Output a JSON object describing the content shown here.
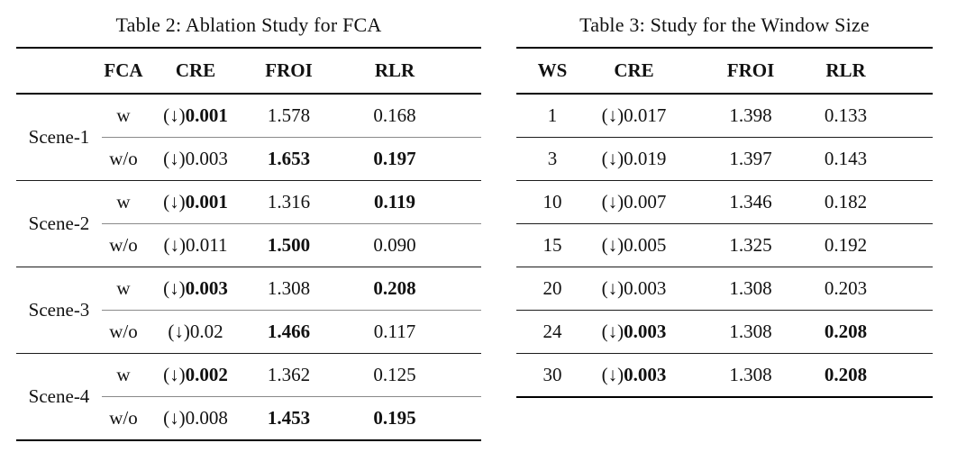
{
  "page": {
    "background": "#ffffff",
    "text_color": "#111111"
  },
  "table2": {
    "title": "Table 2: Ablation Study for FCA",
    "arrow": "(↓)",
    "headers": {
      "scene": "",
      "fca": "FCA",
      "cre": "CRE",
      "froi": "FROI",
      "rlr": "RLR"
    },
    "groups": [
      {
        "scene": "Scene-1",
        "rows": [
          {
            "fca": "w",
            "cre": "0.001",
            "cre_bold": true,
            "froi": "1.578",
            "froi_bold": false,
            "rlr": "0.168",
            "rlr_bold": false
          },
          {
            "fca": "w/o",
            "cre": "0.003",
            "cre_bold": false,
            "froi": "1.653",
            "froi_bold": true,
            "rlr": "0.197",
            "rlr_bold": true
          }
        ]
      },
      {
        "scene": "Scene-2",
        "rows": [
          {
            "fca": "w",
            "cre": "0.001",
            "cre_bold": true,
            "froi": "1.316",
            "froi_bold": false,
            "rlr": "0.119",
            "rlr_bold": true
          },
          {
            "fca": "w/o",
            "cre": "0.011",
            "cre_bold": false,
            "froi": "1.500",
            "froi_bold": true,
            "rlr": "0.090",
            "rlr_bold": false
          }
        ]
      },
      {
        "scene": "Scene-3",
        "rows": [
          {
            "fca": "w",
            "cre": "0.003",
            "cre_bold": true,
            "froi": "1.308",
            "froi_bold": false,
            "rlr": "0.208",
            "rlr_bold": true
          },
          {
            "fca": "w/o",
            "cre": "0.02",
            "cre_bold": false,
            "froi": "1.466",
            "froi_bold": true,
            "rlr": "0.117",
            "rlr_bold": false
          }
        ]
      },
      {
        "scene": "Scene-4",
        "rows": [
          {
            "fca": "w",
            "cre": "0.002",
            "cre_bold": true,
            "froi": "1.362",
            "froi_bold": false,
            "rlr": "0.125",
            "rlr_bold": false
          },
          {
            "fca": "w/o",
            "cre": "0.008",
            "cre_bold": false,
            "froi": "1.453",
            "froi_bold": true,
            "rlr": "0.195",
            "rlr_bold": true
          }
        ]
      }
    ]
  },
  "table3": {
    "title": "Table 3: Study for the Window Size",
    "arrow": "(↓)",
    "headers": {
      "ws": "WS",
      "cre": "CRE",
      "froi": "FROI",
      "rlr": "RLR"
    },
    "rows": [
      {
        "ws": "1",
        "cre": "0.017",
        "cre_bold": false,
        "froi": "1.398",
        "froi_bold": false,
        "rlr": "0.133",
        "rlr_bold": false
      },
      {
        "ws": "3",
        "cre": "0.019",
        "cre_bold": false,
        "froi": "1.397",
        "froi_bold": false,
        "rlr": "0.143",
        "rlr_bold": false
      },
      {
        "ws": "10",
        "cre": "0.007",
        "cre_bold": false,
        "froi": "1.346",
        "froi_bold": false,
        "rlr": "0.182",
        "rlr_bold": false
      },
      {
        "ws": "15",
        "cre": "0.005",
        "cre_bold": false,
        "froi": "1.325",
        "froi_bold": false,
        "rlr": "0.192",
        "rlr_bold": false
      },
      {
        "ws": "20",
        "cre": "0.003",
        "cre_bold": false,
        "froi": "1.308",
        "froi_bold": false,
        "rlr": "0.203",
        "rlr_bold": false
      },
      {
        "ws": "24",
        "cre": "0.003",
        "cre_bold": true,
        "froi": "1.308",
        "froi_bold": false,
        "rlr": "0.208",
        "rlr_bold": true
      },
      {
        "ws": "30",
        "cre": "0.003",
        "cre_bold": true,
        "froi": "1.308",
        "froi_bold": false,
        "rlr": "0.208",
        "rlr_bold": true
      }
    ]
  }
}
